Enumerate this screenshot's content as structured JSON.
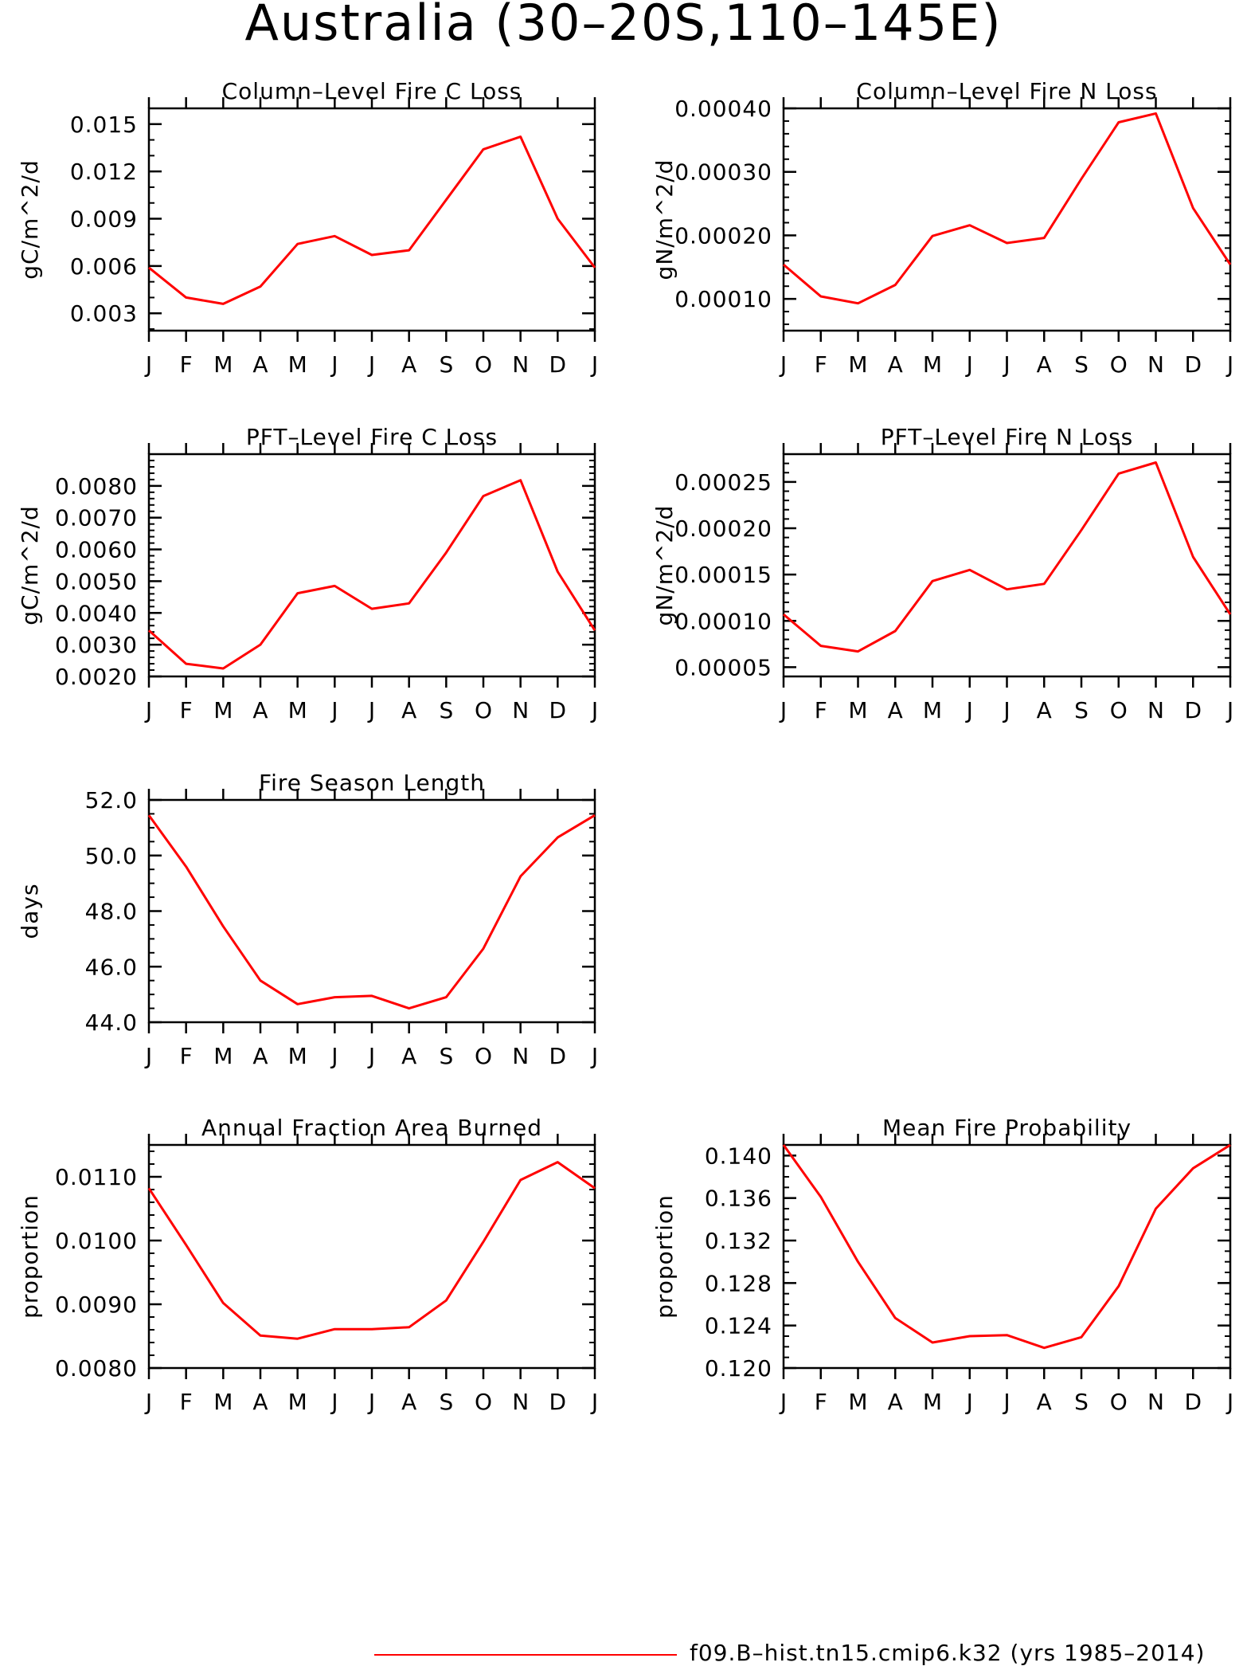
{
  "page": {
    "title": "Australia (30–20S,110–145E)"
  },
  "legend": {
    "label": "f09.B–hist.tn15.cmip6.k32 (yrs 1985–2014)",
    "color": "#ff0000"
  },
  "chart_data": [
    {
      "type": "line",
      "title": "Column–Level Fire C Loss",
      "ylabel": "gC/m^2/d",
      "x": [
        "J",
        "F",
        "M",
        "A",
        "M",
        "J",
        "J",
        "A",
        "S",
        "O",
        "N",
        "D",
        "J"
      ],
      "ylim": [
        0.0019,
        0.016
      ],
      "yticks": [
        0.003,
        0.006,
        0.009,
        0.012,
        0.015
      ],
      "ytick_labels": [
        "0.003",
        "0.006",
        "0.009",
        "0.012",
        "0.015"
      ],
      "yminor": 0.001,
      "series": [
        {
          "color": "#ff0000",
          "values": [
            0.0059,
            0.004,
            0.0036,
            0.0047,
            0.0074,
            0.0079,
            0.0067,
            0.007,
            0.0102,
            0.0134,
            0.0142,
            0.009,
            0.0059
          ]
        }
      ]
    },
    {
      "type": "line",
      "title": "Column–Level Fire N Loss",
      "ylabel": "gN/m^2/d",
      "x": [
        "J",
        "F",
        "M",
        "A",
        "M",
        "J",
        "J",
        "A",
        "S",
        "O",
        "N",
        "D",
        "J"
      ],
      "ylim": [
        5e-05,
        0.0004
      ],
      "yticks": [
        0.0001,
        0.0002,
        0.0003,
        0.0004
      ],
      "ytick_labels": [
        "0.00010",
        "0.00020",
        "0.00030",
        "0.00040"
      ],
      "yminor": 2e-05,
      "series": [
        {
          "color": "#ff0000",
          "values": [
            0.000154,
            0.000104,
            9.3e-05,
            0.000122,
            0.000199,
            0.000216,
            0.000188,
            0.000196,
            0.000289,
            0.000378,
            0.000392,
            0.000243,
            0.000154
          ]
        }
      ]
    },
    {
      "type": "line",
      "title": "PFT–Level Fire C Loss",
      "ylabel": "gC/m^2/d",
      "x": [
        "J",
        "F",
        "M",
        "A",
        "M",
        "J",
        "J",
        "A",
        "S",
        "O",
        "N",
        "D",
        "J"
      ],
      "ylim": [
        0.002,
        0.009
      ],
      "yticks": [
        0.002,
        0.003,
        0.004,
        0.005,
        0.006,
        0.007,
        0.008
      ],
      "ytick_labels": [
        "0.0020",
        "0.0030",
        "0.0040",
        "0.0050",
        "0.0060",
        "0.0070",
        "0.0080"
      ],
      "yminor": 0.0002,
      "series": [
        {
          "color": "#ff0000",
          "values": [
            0.00345,
            0.0024,
            0.00225,
            0.003,
            0.00462,
            0.00485,
            0.00413,
            0.0043,
            0.0059,
            0.00768,
            0.00818,
            0.0053,
            0.00345
          ]
        }
      ]
    },
    {
      "type": "line",
      "title": "PFT–Level Fire N Loss",
      "ylabel": "gN/m^2/d",
      "x": [
        "J",
        "F",
        "M",
        "A",
        "M",
        "J",
        "J",
        "A",
        "S",
        "O",
        "N",
        "D",
        "J"
      ],
      "ylim": [
        4e-05,
        0.00028
      ],
      "yticks": [
        5e-05,
        0.0001,
        0.00015,
        0.0002,
        0.00025
      ],
      "ytick_labels": [
        "0.00005",
        "0.00010",
        "0.00015",
        "0.00020",
        "0.00025"
      ],
      "yminor": 1e-05,
      "series": [
        {
          "color": "#ff0000",
          "values": [
            0.000107,
            7.3e-05,
            6.7e-05,
            8.9e-05,
            0.000143,
            0.000155,
            0.000134,
            0.00014,
            0.000198,
            0.000259,
            0.000271,
            0.000169,
            0.000107
          ]
        }
      ]
    },
    {
      "type": "line",
      "title": "Fire Season Length",
      "ylabel": "days",
      "x": [
        "J",
        "F",
        "M",
        "A",
        "M",
        "J",
        "J",
        "A",
        "S",
        "O",
        "N",
        "D",
        "J"
      ],
      "ylim": [
        44.0,
        52.0
      ],
      "yticks": [
        44,
        46,
        48,
        50,
        52
      ],
      "ytick_labels": [
        "44.0",
        "46.0",
        "48.0",
        "50.0",
        "52.0"
      ],
      "yminor": 0.5,
      "series": [
        {
          "color": "#ff0000",
          "values": [
            51.45,
            49.6,
            47.45,
            45.5,
            44.65,
            44.9,
            44.95,
            44.5,
            44.9,
            46.65,
            49.25,
            50.65,
            51.45
          ]
        }
      ]
    },
    {
      "type": "line",
      "title": "Annual Fraction Area Burned",
      "ylabel": "proportion",
      "x": [
        "J",
        "F",
        "M",
        "A",
        "M",
        "J",
        "J",
        "A",
        "S",
        "O",
        "N",
        "D",
        "J"
      ],
      "ylim": [
        0.008,
        0.0115
      ],
      "yticks": [
        0.008,
        0.009,
        0.01,
        0.011
      ],
      "ytick_labels": [
        "0.0080",
        "0.0090",
        "0.0100",
        "0.0110"
      ],
      "yminor": 0.0002,
      "series": [
        {
          "color": "#ff0000",
          "values": [
            0.01082,
            0.00993,
            0.00902,
            0.00851,
            0.00846,
            0.00861,
            0.00861,
            0.00864,
            0.00906,
            0.00998,
            0.01095,
            0.01123,
            0.01082
          ]
        }
      ]
    },
    {
      "type": "line",
      "title": "Mean Fire Probability",
      "ylabel": "proportion",
      "x": [
        "J",
        "F",
        "M",
        "A",
        "M",
        "J",
        "J",
        "A",
        "S",
        "O",
        "N",
        "D",
        "J"
      ],
      "ylim": [
        0.12,
        0.141
      ],
      "yticks": [
        0.12,
        0.124,
        0.128,
        0.132,
        0.136,
        0.14
      ],
      "ytick_labels": [
        "0.120",
        "0.124",
        "0.128",
        "0.132",
        "0.136",
        "0.140"
      ],
      "yminor": 0.001,
      "series": [
        {
          "color": "#ff0000",
          "values": [
            0.141,
            0.1361,
            0.13,
            0.1247,
            0.1224,
            0.123,
            0.1231,
            0.1219,
            0.1229,
            0.1277,
            0.135,
            0.1388,
            0.141
          ]
        }
      ]
    }
  ]
}
